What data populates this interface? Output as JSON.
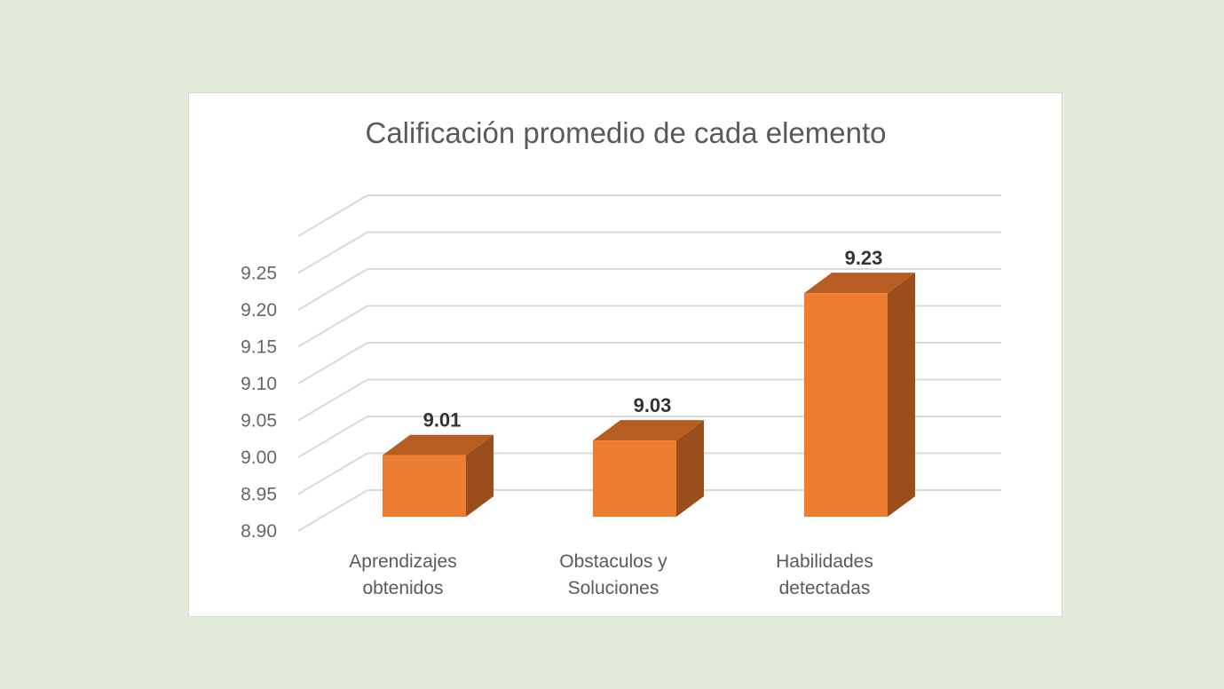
{
  "chart_data": {
    "type": "bar",
    "title": "Calificación promedio de cada elemento",
    "categories": [
      [
        "Aprendizajes",
        "obtenidos"
      ],
      [
        "Obstaculos y",
        "Soluciones"
      ],
      [
        "Habilidades",
        "detectadas"
      ]
    ],
    "values": [
      9.01,
      9.03,
      9.23
    ],
    "data_labels": [
      "9.01",
      "9.03",
      "9.23"
    ],
    "y_ticks": [
      "8.90",
      "8.95",
      "9.00",
      "9.05",
      "9.10",
      "9.15",
      "9.20",
      "9.25"
    ],
    "ylim": [
      8.9,
      9.3
    ],
    "grid": true,
    "style": "3d-column",
    "colors": {
      "bar_front": "#ED7D31",
      "bar_side": "#9A4E1C",
      "bar_top": "#B85D22",
      "grid": "#d9d9d9",
      "background": "#e2ecd8",
      "panel": "#ffffff"
    }
  }
}
